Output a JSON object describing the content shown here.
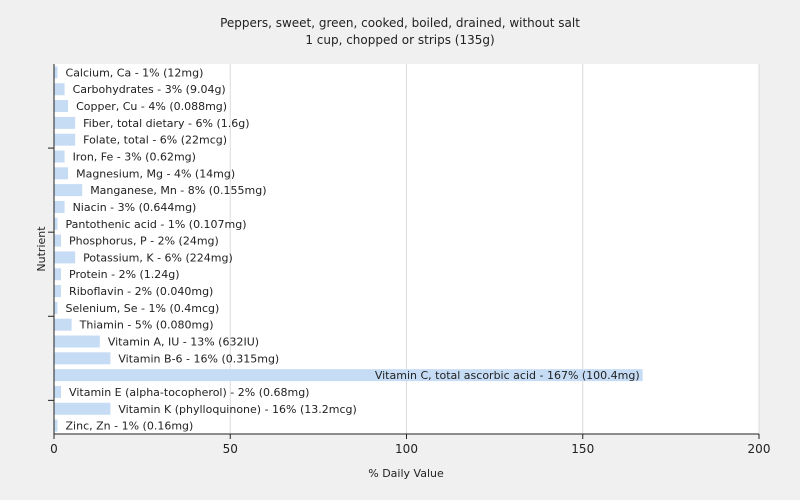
{
  "chart_data": {
    "type": "bar",
    "orientation": "horizontal",
    "title": "Peppers, sweet, green, cooked, boiled, drained, without salt",
    "subtitle": "1 cup, chopped or strips (135g)",
    "xlabel": "% Daily Value",
    "ylabel": "Nutrient",
    "xlim": [
      0,
      200
    ],
    "xticks": [
      0,
      50,
      100,
      150,
      200
    ],
    "grid": true,
    "bar_color": "#c6dcf5",
    "categories": [
      "Calcium, Ca",
      "Carbohydrates",
      "Copper, Cu",
      "Fiber, total dietary",
      "Folate, total",
      "Iron, Fe",
      "Magnesium, Mg",
      "Manganese, Mn",
      "Niacin",
      "Pantothenic acid",
      "Phosphorus, P",
      "Potassium, K",
      "Protein",
      "Riboflavin",
      "Selenium, Se",
      "Thiamin",
      "Vitamin A, IU",
      "Vitamin B-6",
      "Vitamin C, total ascorbic acid",
      "Vitamin E (alpha-tocopherol)",
      "Vitamin K (phylloquinone)",
      "Zinc, Zn"
    ],
    "values": [
      1,
      3,
      4,
      6,
      6,
      3,
      4,
      8,
      3,
      1,
      2,
      6,
      2,
      2,
      1,
      5,
      13,
      16,
      167,
      2,
      16,
      1
    ],
    "labels": [
      "Calcium, Ca - 1% (12mg)",
      "Carbohydrates - 3% (9.04g)",
      "Copper, Cu - 4% (0.088mg)",
      "Fiber, total dietary - 6% (1.6g)",
      "Folate, total - 6% (22mcg)",
      "Iron, Fe - 3% (0.62mg)",
      "Magnesium, Mg - 4% (14mg)",
      "Manganese, Mn - 8% (0.155mg)",
      "Niacin - 3% (0.644mg)",
      "Pantothenic acid - 1% (0.107mg)",
      "Phosphorus, P - 2% (24mg)",
      "Potassium, K - 6% (224mg)",
      "Protein - 2% (1.24g)",
      "Riboflavin - 2% (0.040mg)",
      "Selenium, Se - 1% (0.4mcg)",
      "Thiamin - 5% (0.080mg)",
      "Vitamin A, IU - 13% (632IU)",
      "Vitamin B-6 - 16% (0.315mg)",
      "Vitamin C, total ascorbic acid - 167% (100.4mg)",
      "Vitamin E (alpha-tocopherol) - 2% (0.68mg)",
      "Vitamin K (phylloquinone) - 16% (13.2mcg)",
      "Zinc, Zn - 1% (0.16mg)"
    ]
  }
}
